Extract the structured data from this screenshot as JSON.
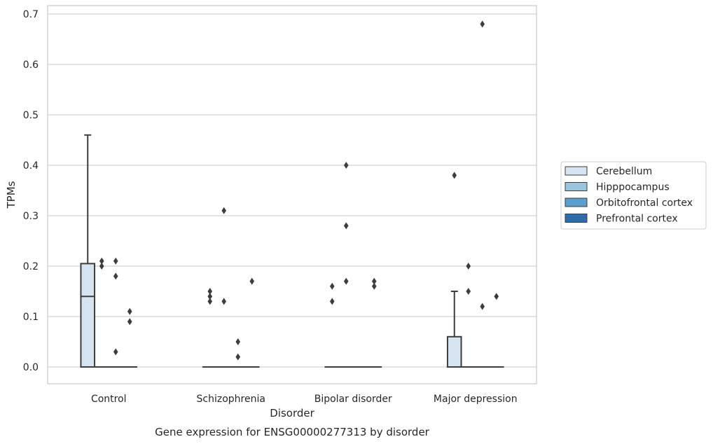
{
  "caption": "Gene expression for ENSG00000277313 by disorder",
  "chart_data": {
    "type": "box",
    "title": "",
    "xlabel": "Disorder",
    "ylabel": "TPMs",
    "ylim": [
      -0.033,
      0.715
    ],
    "yticks": [
      "0.0",
      "0.1",
      "0.2",
      "0.3",
      "0.4",
      "0.5",
      "0.6",
      "0.7"
    ],
    "grid": true,
    "legend_position": "right",
    "categories": [
      "Control",
      "Schizophrenia",
      "Bipolar disorder",
      "Major depression"
    ],
    "series": [
      {
        "name": "Cerebellum",
        "color": "#d6e4f2",
        "boxes": [
          {
            "q1": 0,
            "median": 0.14,
            "q3": 0.205,
            "whislo": 0,
            "whishi": 0.46,
            "fliers": []
          },
          {
            "q1": 0,
            "median": 0,
            "q3": 0,
            "whislo": 0,
            "whishi": 0,
            "fliers": [
              0.13,
              0.14,
              0.15
            ]
          },
          {
            "q1": 0,
            "median": 0,
            "q3": 0,
            "whislo": 0,
            "whishi": 0,
            "fliers": [
              0.13,
              0.16
            ]
          },
          {
            "q1": 0,
            "median": 0,
            "q3": 0.06,
            "whislo": 0,
            "whishi": 0.15,
            "fliers": [
              0.38
            ]
          }
        ]
      },
      {
        "name": "Hipppocampus",
        "color": "#9ac5de",
        "boxes": [
          {
            "q1": 0,
            "median": 0,
            "q3": 0,
            "whislo": 0,
            "whishi": 0,
            "fliers": [
              0.2,
              0.21
            ]
          },
          {
            "q1": 0,
            "median": 0,
            "q3": 0,
            "whislo": 0,
            "whishi": 0,
            "fliers": [
              0.31,
              0.13
            ]
          },
          {
            "q1": 0,
            "median": 0,
            "q3": 0,
            "whislo": 0,
            "whishi": 0,
            "fliers": [
              0.4,
              0.28,
              0.17
            ]
          },
          {
            "q1": 0,
            "median": 0,
            "q3": 0,
            "whislo": 0,
            "whishi": 0,
            "fliers": [
              0.2,
              0.15
            ]
          }
        ]
      },
      {
        "name": "Orbitofrontal cortex",
        "color": "#5a9fcd",
        "boxes": [
          {
            "q1": 0,
            "median": 0,
            "q3": 0,
            "whislo": 0,
            "whishi": 0,
            "fliers": [
              0.21,
              0.18,
              0.03
            ]
          },
          {
            "q1": 0,
            "median": 0,
            "q3": 0,
            "whislo": 0,
            "whishi": 0,
            "fliers": [
              0.05,
              0.02
            ]
          },
          {
            "q1": 0,
            "median": 0,
            "q3": 0,
            "whislo": 0,
            "whishi": 0,
            "fliers": []
          },
          {
            "q1": 0,
            "median": 0,
            "q3": 0,
            "whislo": 0,
            "whishi": 0,
            "fliers": [
              0.68,
              0.12
            ]
          }
        ]
      },
      {
        "name": "Prefrontal cortex",
        "color": "#2f6ca8",
        "boxes": [
          {
            "q1": 0,
            "median": 0,
            "q3": 0,
            "whislo": 0,
            "whishi": 0,
            "fliers": [
              0.11,
              0.09
            ]
          },
          {
            "q1": 0,
            "median": 0,
            "q3": 0,
            "whislo": 0,
            "whishi": 0,
            "fliers": [
              0.17
            ]
          },
          {
            "q1": 0,
            "median": 0,
            "q3": 0,
            "whislo": 0,
            "whishi": 0,
            "fliers": [
              0.17,
              0.16
            ]
          },
          {
            "q1": 0,
            "median": 0,
            "q3": 0,
            "whislo": 0,
            "whishi": 0,
            "fliers": [
              0.14
            ]
          }
        ]
      }
    ]
  }
}
